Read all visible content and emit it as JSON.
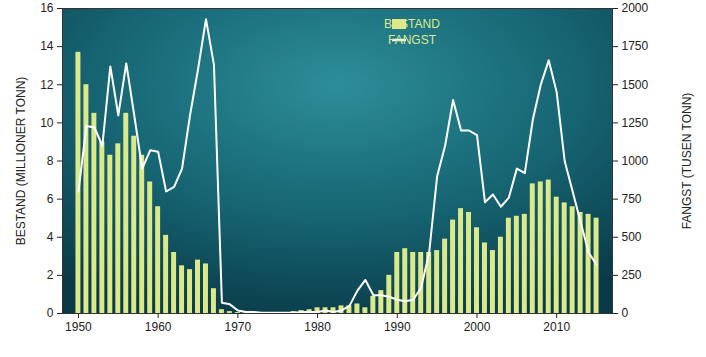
{
  "chart_data": {
    "type": "bar",
    "y_label": "BESTAND (MILLIONER TONN)",
    "y2_label": "FANGST (TUSEN TONN)",
    "x": [
      1950,
      1951,
      1952,
      1953,
      1954,
      1955,
      1956,
      1957,
      1958,
      1959,
      1960,
      1961,
      1962,
      1963,
      1964,
      1965,
      1966,
      1967,
      1968,
      1969,
      1970,
      1971,
      1972,
      1973,
      1974,
      1975,
      1976,
      1977,
      1978,
      1979,
      1980,
      1981,
      1982,
      1983,
      1984,
      1985,
      1986,
      1987,
      1988,
      1989,
      1990,
      1991,
      1992,
      1993,
      1994,
      1995,
      1996,
      1997,
      1998,
      1999,
      2000,
      2001,
      2002,
      2003,
      2004,
      2005,
      2006,
      2007,
      2008,
      2009,
      2010,
      2011,
      2012,
      2013,
      2014,
      2015
    ],
    "xlim": [
      1948,
      2017
    ],
    "xticks": [
      1950,
      1960,
      1970,
      1980,
      1990,
      2000,
      2010
    ],
    "ylim": [
      0,
      16
    ],
    "yticks": [
      0,
      2,
      4,
      6,
      8,
      10,
      12,
      14,
      16
    ],
    "y2lim": [
      0,
      2000
    ],
    "y2ticks": [
      0,
      250,
      500,
      750,
      1000,
      1250,
      1500,
      1750,
      2000
    ],
    "grid": false,
    "legend": "top",
    "series": [
      {
        "name": "BESTAND",
        "type": "bar",
        "color": "#dbe98a",
        "values": [
          13.7,
          12.0,
          10.5,
          9.0,
          8.3,
          8.9,
          10.5,
          9.3,
          8.3,
          6.9,
          5.6,
          4.1,
          3.2,
          2.5,
          2.3,
          2.8,
          2.6,
          1.3,
          0.2,
          0.1,
          0.05,
          0.02,
          0.02,
          0.02,
          0.02,
          0.05,
          0.05,
          0.1,
          0.15,
          0.2,
          0.3,
          0.3,
          0.3,
          0.4,
          0.4,
          0.5,
          0.3,
          0.9,
          1.2,
          2.0,
          3.2,
          3.4,
          3.2,
          3.2,
          3.2,
          3.3,
          3.9,
          4.9,
          5.5,
          5.3,
          4.5,
          3.7,
          3.3,
          4.0,
          5.0,
          5.1,
          5.2,
          6.8,
          6.9,
          7.0,
          6.1,
          5.8,
          5.6,
          5.3,
          5.2,
          5.0
        ]
      },
      {
        "name": "FANGST",
        "type": "line",
        "color": "#ffffff",
        "axis": "y2",
        "values": [
          800,
          1230,
          1220,
          1100,
          1620,
          1300,
          1640,
          1300,
          950,
          1070,
          1060,
          800,
          830,
          950,
          1300,
          1600,
          1930,
          1630,
          70,
          60,
          20,
          10,
          10,
          5,
          5,
          5,
          5,
          5,
          10,
          10,
          10,
          20,
          10,
          20,
          50,
          150,
          220,
          120,
          120,
          110,
          90,
          80,
          90,
          170,
          400,
          900,
          1100,
          1400,
          1200,
          1200,
          1170,
          730,
          780,
          700,
          760,
          950,
          920,
          1270,
          1500,
          1660,
          1450,
          1000,
          800,
          600,
          400,
          320
        ]
      }
    ]
  }
}
